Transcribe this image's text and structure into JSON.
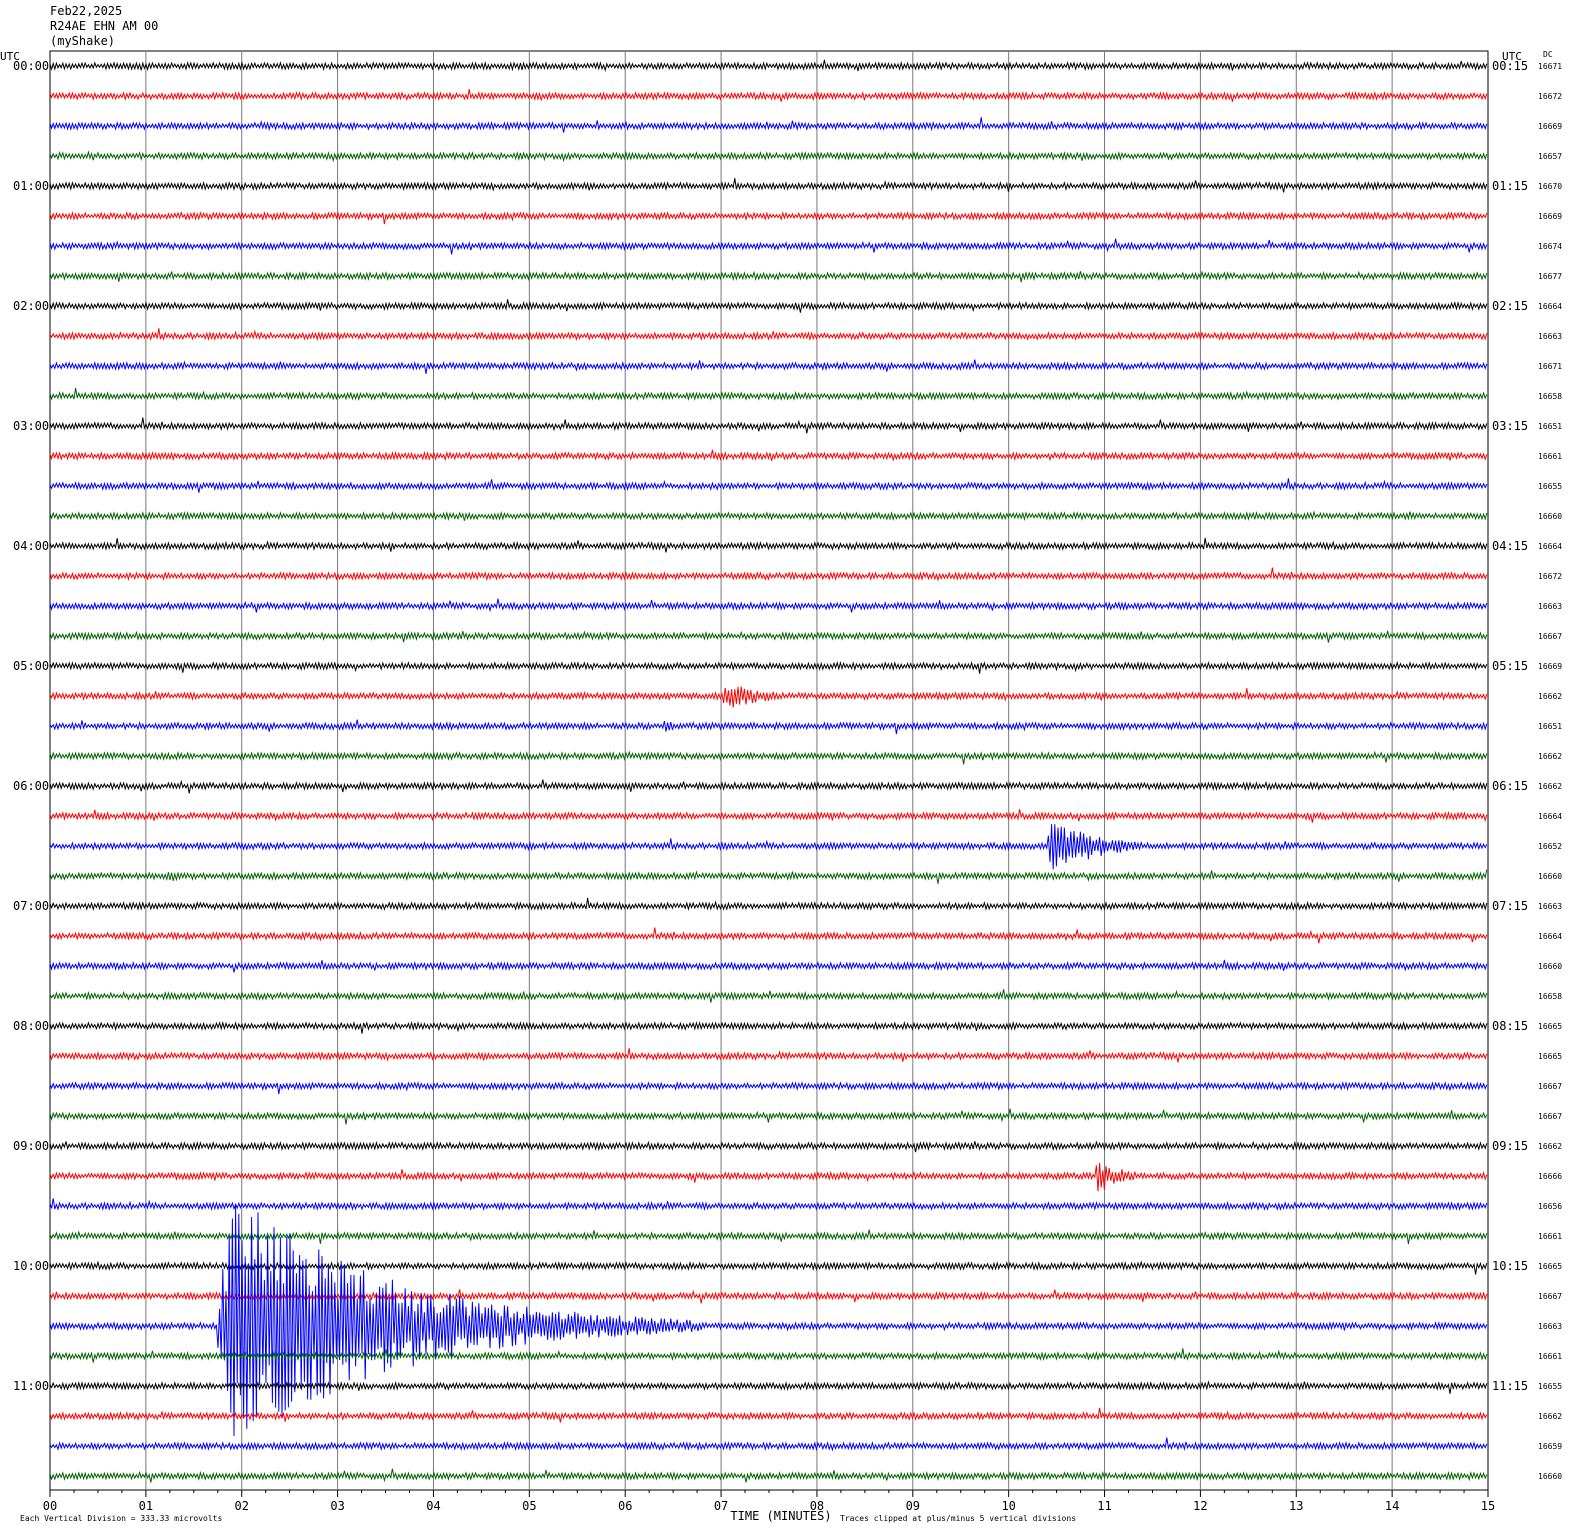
{
  "header": {
    "date": "Feb22,2025",
    "station": "R24AE EHN AM 00",
    "network": "(myShake)"
  },
  "chart_data": {
    "type": "helicorder",
    "left_axis_label": "UTC",
    "right_axis_label": "UTC",
    "dc_label": "DC",
    "xlabel": "TIME (MINUTES)",
    "x_ticks": [
      "00",
      "01",
      "02",
      "03",
      "04",
      "05",
      "06",
      "07",
      "08",
      "09",
      "10",
      "11",
      "12",
      "13",
      "14",
      "15"
    ],
    "xlim": [
      0,
      15
    ],
    "row_minutes": 15,
    "left_times": [
      "00:00",
      "01:00",
      "02:00",
      "03:00",
      "04:00",
      "05:00",
      "06:00",
      "07:00",
      "08:00",
      "09:00",
      "10:00",
      "11:00"
    ],
    "right_times": [
      "00:15",
      "01:15",
      "02:15",
      "03:15",
      "04:15",
      "05:15",
      "06:15",
      "07:15",
      "08:15",
      "09:15",
      "10:15",
      "11:15"
    ],
    "trace_colors": [
      "#000000",
      "#ff0000",
      "#0000ff",
      "#006400"
    ],
    "dc_offsets": [
      "16671",
      "16672",
      "16669",
      "16657",
      "16670",
      "16669",
      "16674",
      "16677",
      "16664",
      "16663",
      "16671",
      "16658",
      "16651",
      "16661",
      "16655",
      "16660",
      "16664",
      "16672",
      "16663",
      "16667",
      "16669",
      "16662",
      "16651",
      "16662",
      "16662",
      "16664",
      "16652",
      "16660",
      "16663",
      "16664",
      "16660",
      "16658",
      "16665",
      "16665",
      "16667",
      "16667",
      "16662",
      "16666",
      "16656",
      "16661",
      "16665",
      "16667",
      "16663",
      "16661",
      "16655",
      "16662",
      "16659",
      "16660"
    ],
    "events": [
      {
        "row": 21,
        "start_min": 7.0,
        "end_min": 8.3,
        "amplitude": 16
      },
      {
        "row": 22,
        "start_min": 6.4,
        "end_min": 6.8,
        "amplitude": 10
      },
      {
        "row": 26,
        "start_min": 10.4,
        "end_min": 12.0,
        "amplitude": 32
      },
      {
        "row": 27,
        "start_min": 1.2,
        "end_min": 1.9,
        "amplitude": 9
      },
      {
        "row": 37,
        "start_min": 10.9,
        "end_min": 11.8,
        "amplitude": 20
      },
      {
        "row": 42,
        "start_min": 1.75,
        "end_min": 6.8,
        "amplitude": 150
      }
    ],
    "footer_left": "Each Vertical Division =  333.33 microvolts",
    "footer_right": "Traces clipped at plus/minus 5 vertical divisions"
  }
}
